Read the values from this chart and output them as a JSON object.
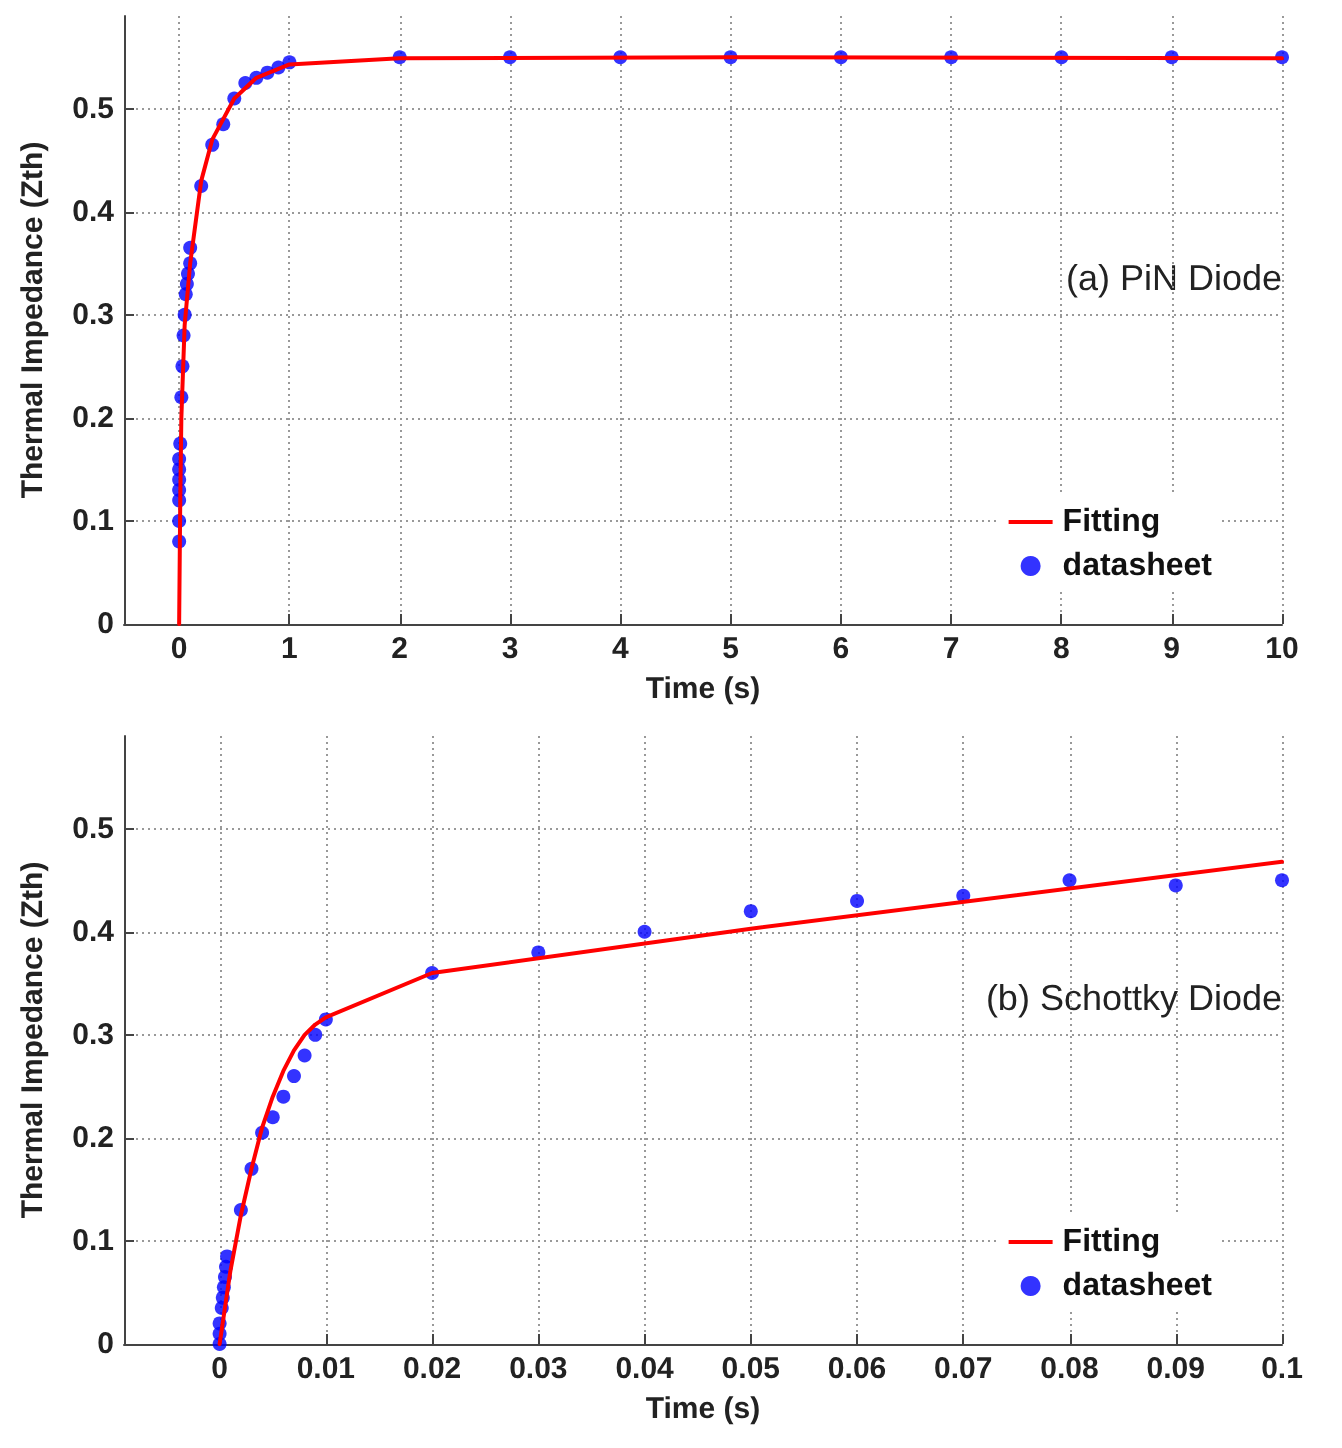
{
  "chart_data": [
    {
      "type": "line",
      "xlabel": "Time (s)",
      "ylabel": "Thermal Impedance (Zth)",
      "annotations": [
        "(a) PiN Diode"
      ],
      "xlim": [
        -0.5,
        10
      ],
      "xticks": [
        0,
        1,
        2,
        3,
        4,
        5,
        6,
        7,
        8,
        9,
        10
      ],
      "ylim": [
        0,
        0.59
      ],
      "yticks": [
        0,
        0.1,
        0.2,
        0.3,
        0.4,
        0.5
      ],
      "grid": true,
      "legend": "bottom right",
      "series": [
        {
          "name": "Fitting",
          "color": "#ff0000",
          "marker": "none",
          "line_style": "solid",
          "x": [
            0,
            0.01,
            0.02,
            0.05,
            0.1,
            0.2,
            0.3,
            0.5,
            0.7,
            1,
            2,
            5,
            10
          ],
          "values": [
            0,
            0.12,
            0.2,
            0.29,
            0.35,
            0.43,
            0.47,
            0.51,
            0.53,
            0.543,
            0.549,
            0.55,
            0.549
          ]
        },
        {
          "name": "datasheet",
          "type": "scatter",
          "color": "#0000ff",
          "marker": "circle",
          "x": [
            0,
            0,
            0,
            0,
            0,
            0,
            0,
            0.01,
            0.02,
            0.03,
            0.04,
            0.05,
            0.06,
            0.07,
            0.08,
            0.1,
            0.1,
            0.2,
            0.3,
            0.4,
            0.5,
            0.6,
            0.7,
            0.8,
            0.9,
            1,
            2,
            3,
            4,
            5,
            6,
            7,
            8,
            9,
            10
          ],
          "values": [
            0.08,
            0.1,
            0.12,
            0.13,
            0.14,
            0.15,
            0.16,
            0.175,
            0.22,
            0.25,
            0.28,
            0.3,
            0.32,
            0.33,
            0.34,
            0.35,
            0.365,
            0.425,
            0.465,
            0.485,
            0.51,
            0.525,
            0.53,
            0.535,
            0.54,
            0.545,
            0.55,
            0.55,
            0.55,
            0.55,
            0.55,
            0.55,
            0.55,
            0.55,
            0.55
          ]
        }
      ]
    },
    {
      "type": "line",
      "xlabel": "Time (s)",
      "ylabel": "Thermal Impedance (Zth)",
      "annotations": [
        "(b) Schottky Diode"
      ],
      "xlim": [
        -0.009,
        0.1
      ],
      "xticks": [
        0,
        0.01,
        0.02,
        0.03,
        0.04,
        0.05,
        0.06,
        0.07,
        0.08,
        0.09,
        0.1
      ],
      "ylim": [
        0,
        0.59
      ],
      "yticks": [
        0,
        0.1,
        0.2,
        0.3,
        0.4,
        0.5
      ],
      "grid": true,
      "legend": "bottom right",
      "series": [
        {
          "name": "Fitting",
          "color": "#ff0000",
          "marker": "none",
          "line_style": "solid",
          "x": [
            0,
            0.001,
            0.002,
            0.003,
            0.004,
            0.005,
            0.006,
            0.007,
            0.008,
            0.009,
            0.01,
            0.02,
            0.05,
            0.1
          ],
          "values": [
            0,
            0.07,
            0.125,
            0.17,
            0.21,
            0.24,
            0.265,
            0.285,
            0.3,
            0.31,
            0.317,
            0.36,
            0.403,
            0.468
          ]
        },
        {
          "name": "datasheet",
          "type": "scatter",
          "color": "#0000ff",
          "marker": "circle",
          "x": [
            0,
            0,
            0,
            0.0002,
            0.0003,
            0.0004,
            0.0005,
            0.0006,
            0.0007,
            0.002,
            0.003,
            0.004,
            0.005,
            0.006,
            0.007,
            0.008,
            0.009,
            0.01,
            0.02,
            0.03,
            0.04,
            0.05,
            0.06,
            0.07,
            0.08,
            0.09,
            0.1
          ],
          "values": [
            0,
            0.01,
            0.02,
            0.035,
            0.045,
            0.055,
            0.065,
            0.075,
            0.085,
            0.13,
            0.17,
            0.205,
            0.22,
            0.24,
            0.26,
            0.28,
            0.3,
            0.315,
            0.36,
            0.38,
            0.4,
            0.42,
            0.43,
            0.435,
            0.45,
            0.445,
            0.45
          ]
        }
      ]
    }
  ]
}
